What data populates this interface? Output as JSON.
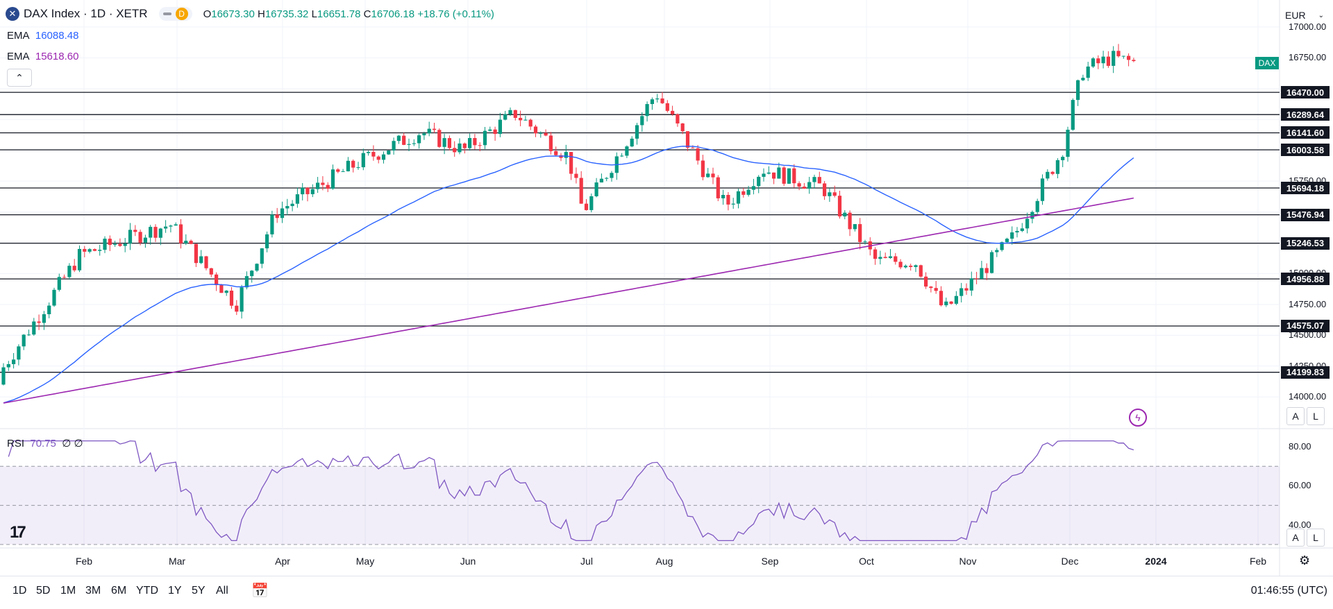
{
  "header": {
    "symbol_icon": "x-logo-icon",
    "title": "DAX Index · 1D · XETR",
    "interval_badge": "D",
    "open_label": "O",
    "open": "16673.30",
    "high_label": "H",
    "high": "16735.32",
    "low_label": "L",
    "low": "16651.78",
    "close_label": "C",
    "close": "16706.18",
    "change": "+18.76 (+0.11%)"
  },
  "indicators": {
    "ema1_label": "EMA",
    "ema1_value": "16088.48",
    "ema1_color": "#2962ff",
    "ema2_label": "EMA",
    "ema2_value": "15618.60",
    "ema2_color": "#9c27b0"
  },
  "currency": "EUR",
  "dax_tag": "DAX",
  "price_axis_ticks": [
    "17000.00",
    "16750.00",
    "15750.00",
    "15000.00",
    "14750.00",
    "14500.00",
    "14250.00",
    "14000.00"
  ],
  "level_tags": [
    "16470.00",
    "16289.64",
    "16141.60",
    "16003.58",
    "15694.18",
    "15476.94",
    "15246.53",
    "14956.88",
    "14575.07",
    "14199.83"
  ],
  "rsi": {
    "label": "RSI",
    "value": "70.75",
    "extra1": "∅",
    "extra2": "∅",
    "ticks": [
      "80.00",
      "60.00",
      "40.00"
    ]
  },
  "months": [
    "Feb",
    "Mar",
    "Apr",
    "May",
    "Jun",
    "Jul",
    "Aug",
    "Sep",
    "Oct",
    "Nov",
    "Dec",
    "2024",
    "Feb"
  ],
  "timeframes": [
    "1D",
    "5D",
    "1M",
    "3M",
    "6M",
    "YTD",
    "1Y",
    "5Y",
    "All"
  ],
  "clock": "01:46:55 (UTC)",
  "scale_buttons": {
    "auto": "A",
    "log": "L"
  },
  "colors": {
    "up": "#089981",
    "down": "#f23645",
    "rsi": "#7e57c2"
  },
  "chart_data": {
    "type": "candlestick",
    "title": "DAX Index · 1D · XETR",
    "y_range": [
      13900,
      17050
    ],
    "horizontal_levels": [
      16470.0,
      16289.64,
      16141.6,
      16003.58,
      15694.18,
      15476.94,
      15246.53,
      14956.88,
      14575.07,
      14199.83
    ],
    "series": [
      {
        "name": "DAX",
        "type": "candles",
        "x": [
          "2023-01-02",
          "2023-01-30",
          "2023-02-27",
          "2023-03-20",
          "2023-04-03",
          "2023-05-02",
          "2023-05-19",
          "2023-06-01",
          "2023-06-16",
          "2023-07-03",
          "2023-07-10",
          "2023-07-31",
          "2023-08-18",
          "2023-09-01",
          "2023-09-14",
          "2023-10-04",
          "2023-10-20",
          "2023-10-27",
          "2023-11-01",
          "2023-11-14",
          "2023-12-01",
          "2023-12-05",
          "2023-12-11",
          "2023-12-14",
          "2023-12-22"
        ],
        "close": [
          14200,
          15150,
          15400,
          14750,
          15500,
          15900,
          16150,
          16000,
          16300,
          15950,
          15500,
          16470,
          15550,
          15850,
          15700,
          15100,
          15100,
          14700,
          14900,
          15300,
          16000,
          16350,
          16650,
          16750,
          16706
        ]
      },
      {
        "name": "EMA",
        "values_end": 16088.48
      },
      {
        "name": "EMA",
        "values_end": 15618.6
      }
    ],
    "rsi": {
      "range": [
        30,
        85
      ],
      "last": 70.75,
      "levels": [
        70,
        50,
        30
      ]
    }
  }
}
